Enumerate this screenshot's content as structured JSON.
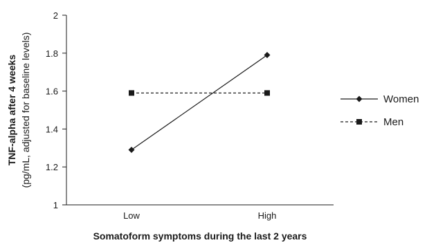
{
  "chart_data": {
    "type": "line",
    "categories": [
      "Low",
      "High"
    ],
    "series": [
      {
        "name": "Women",
        "values": [
          1.29,
          1.79
        ],
        "marker": "diamond",
        "line_style": "solid",
        "color": "#1a1a1a"
      },
      {
        "name": "Men",
        "values": [
          1.59,
          1.59
        ],
        "marker": "square",
        "line_style": "dashed",
        "color": "#1a1a1a"
      }
    ],
    "ylim": [
      1,
      2
    ],
    "yticks": [
      "1",
      "1.2",
      "1.4",
      "1.6",
      "1.8",
      "2"
    ],
    "xlabel": "Somatoform symptoms during the last 2 years",
    "ylabel": "TNF-alpha after 4 weeks",
    "ylabel_sub": "(pg/mL, adjusted for baseline levels)",
    "legend_position": "right",
    "grid": false
  }
}
